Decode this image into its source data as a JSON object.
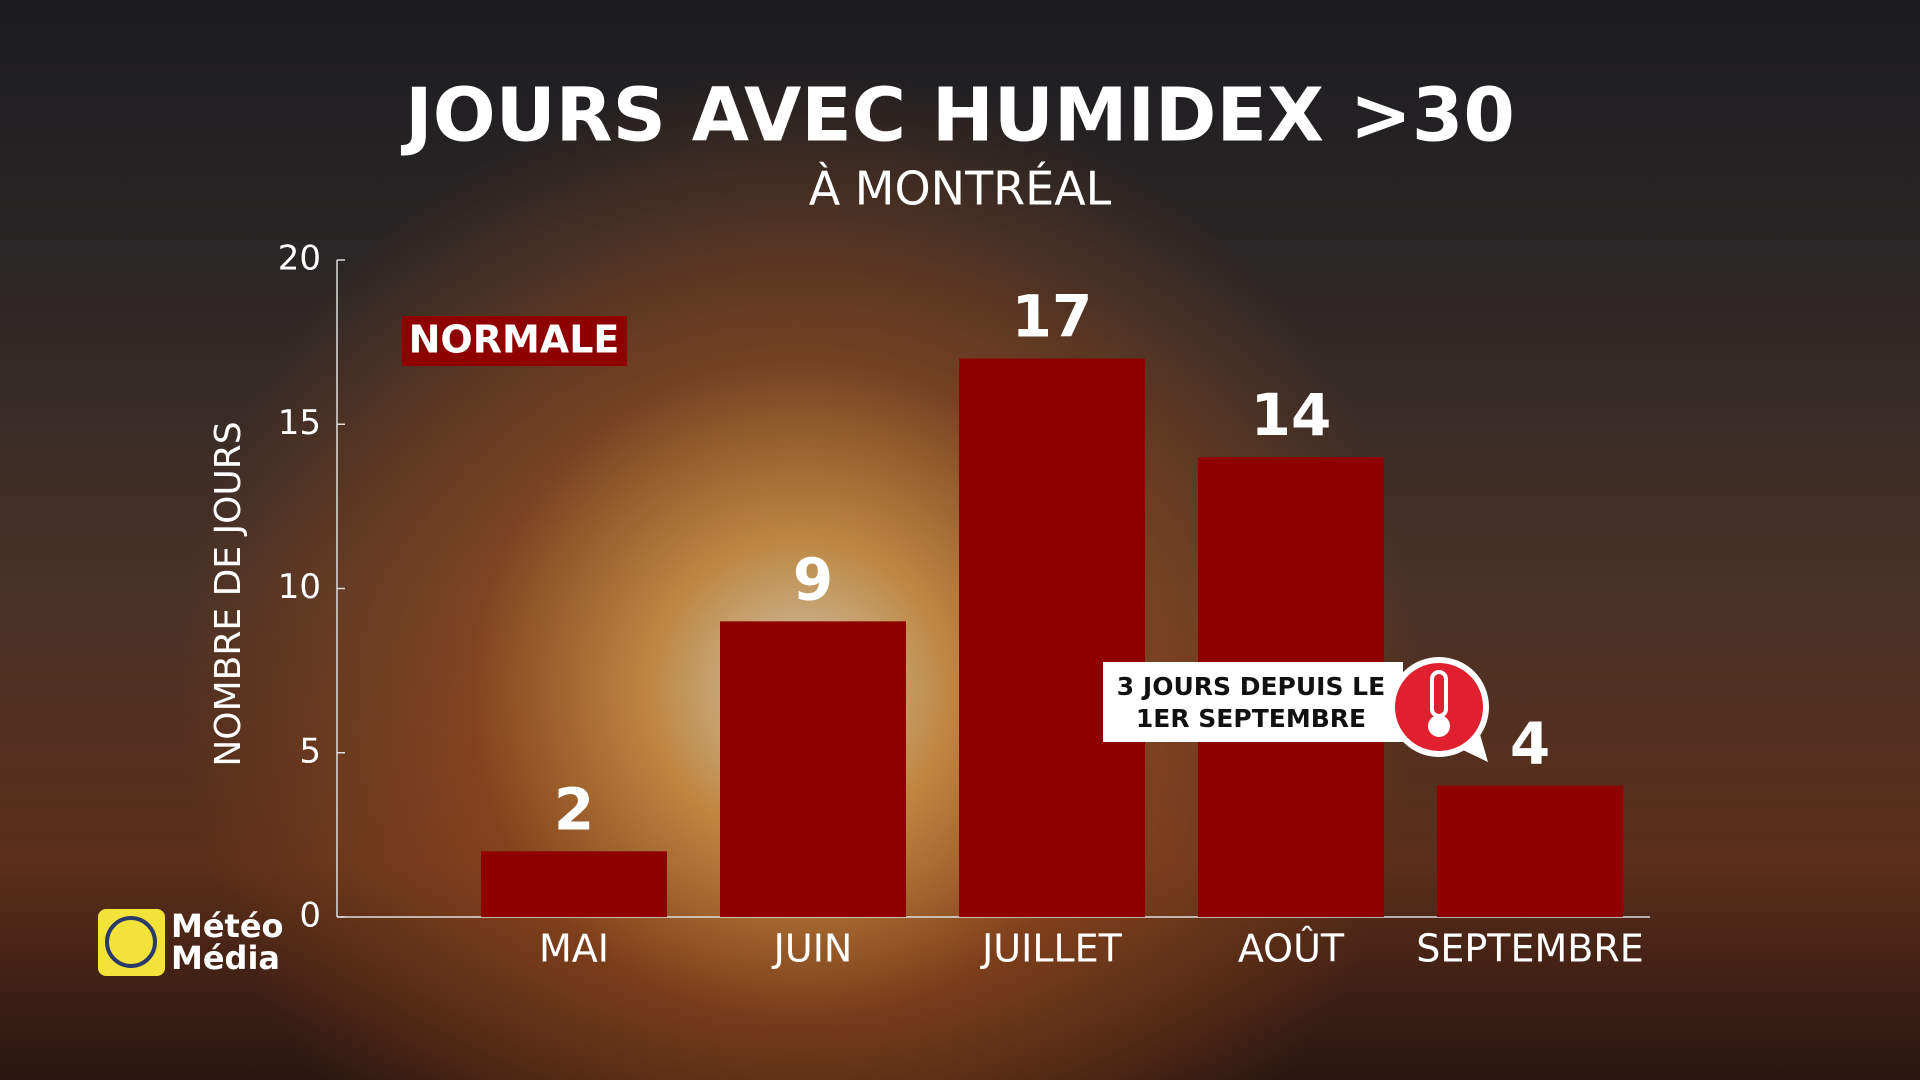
{
  "chart_data": {
    "type": "bar",
    "title": "JOURS AVEC HUMIDEX >30",
    "subtitle": "À MONTRÉAL",
    "y_label": "NOMBRE DE JOURS",
    "categories": [
      "MAI",
      "JUIN",
      "JUILLET",
      "AOÛT",
      "SEPTEMBRE"
    ],
    "series": [
      {
        "name": "NORMALE",
        "color": "#8f0000",
        "values": [
          2,
          9,
          17,
          14,
          4
        ]
      }
    ],
    "ylim": [
      0,
      20
    ],
    "yticks": [
      0,
      5,
      10,
      15,
      20
    ],
    "annotation": [
      "3 JOURS DEPUIS LE",
      "1ER SEPTEMBRE"
    ]
  },
  "logo": [
    "Météo",
    "Média"
  ]
}
